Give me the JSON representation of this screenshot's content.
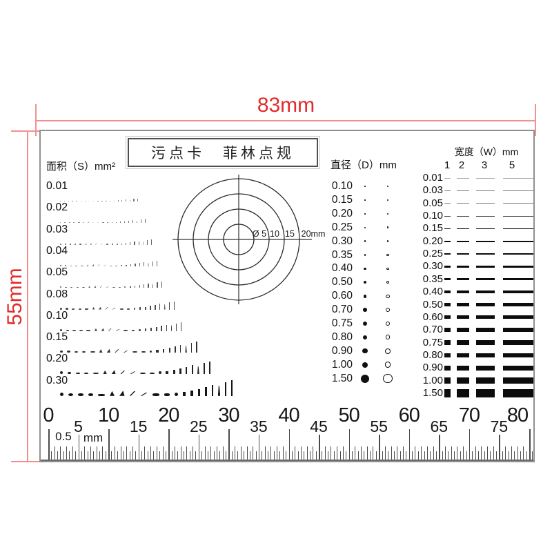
{
  "colors": {
    "red_text": "#e12b2b",
    "red_line": "#f29090",
    "card_border": "#8f8f8f",
    "ink": "#1a1a1a"
  },
  "top_dimension": {
    "label": "83mm"
  },
  "left_dimension": {
    "label": "55mm"
  },
  "card": {
    "title": "污点卡　菲林点规",
    "area_section": {
      "header": "面积（S）mm²",
      "values": [
        "0.01",
        "0.02",
        "0.03",
        "0.04",
        "0.05",
        "0.08",
        "0.10",
        "0.15",
        "0.20",
        "0.30"
      ]
    },
    "circle_gauge": {
      "labels": [
        "Ø 5",
        "10",
        "15",
        "20mm"
      ],
      "diameters_mm": [
        5,
        10,
        15,
        20
      ]
    },
    "diameter_section": {
      "header": "直径（D）mm",
      "values": [
        "0.10",
        "0.15",
        "0.20",
        "0.25",
        "0.30",
        "0.35",
        "0.40",
        "0.50",
        "0.60",
        "0.70",
        "0.75",
        "0.80",
        "0.90",
        "1.00",
        "1.50"
      ]
    },
    "width_section": {
      "header": "宽度（W）mm",
      "columns": [
        "1",
        "2",
        "3",
        "5"
      ],
      "values": [
        "0.01",
        "0.03",
        "0.05",
        "0.10",
        "0.15",
        "0.20",
        "0.25",
        "0.30",
        "0.35",
        "0.40",
        "0.50",
        "0.60",
        "0.70",
        "0.75",
        "0.80",
        "0.90",
        "1.00",
        "1.50"
      ]
    },
    "ruler": {
      "major_labels": [
        "0",
        "10",
        "20",
        "30",
        "40",
        "50",
        "60",
        "70",
        "80"
      ],
      "minor_labels": [
        "5",
        "15",
        "25",
        "35",
        "45",
        "55",
        "65",
        "75"
      ],
      "half_label": "0.5",
      "unit_label": "mm"
    }
  }
}
